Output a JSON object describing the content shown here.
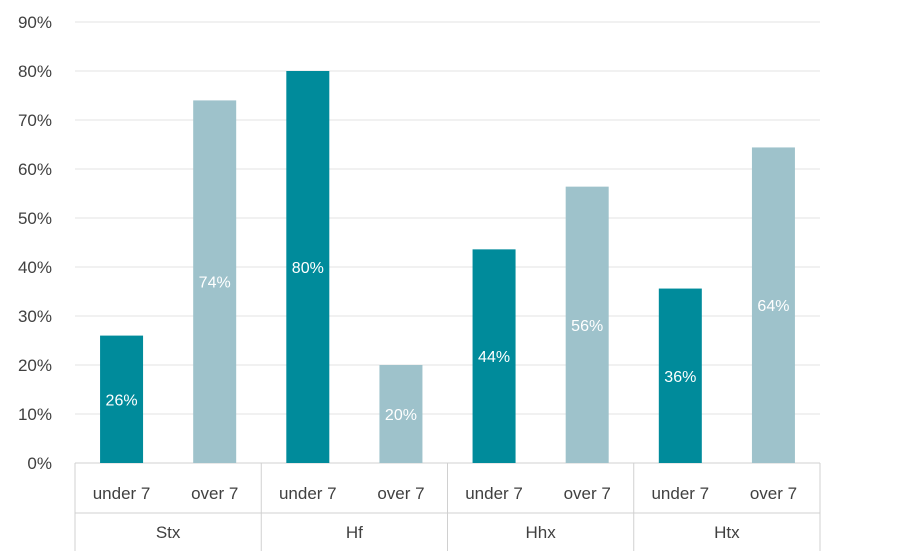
{
  "chart_data": {
    "type": "bar",
    "title": "",
    "xlabel": "",
    "ylabel": "",
    "ylim": [
      0,
      90
    ],
    "y_tick_values": [
      0,
      10,
      20,
      30,
      40,
      50,
      60,
      70,
      80,
      90
    ],
    "y_tick_labels": [
      "0%",
      "10%",
      "20%",
      "30%",
      "40%",
      "50%",
      "60%",
      "70%",
      "80%",
      "90%"
    ],
    "grid": "horizontal",
    "legend": "none",
    "groups": [
      {
        "label": "Stx",
        "bars": [
          {
            "label": "under 7",
            "value": 26,
            "data_label": "26%",
            "color": "#008b9b"
          },
          {
            "label": "over 7",
            "value": 74,
            "data_label": "74%",
            "color": "#9ec2cb"
          }
        ]
      },
      {
        "label": "Hf",
        "bars": [
          {
            "label": "under 7",
            "value": 80,
            "data_label": "80%",
            "color": "#008b9b"
          },
          {
            "label": "over 7",
            "value": 20,
            "data_label": "20%",
            "color": "#9ec2cb"
          }
        ]
      },
      {
        "label": "Hhx",
        "bars": [
          {
            "label": "under 7",
            "value": 43.6,
            "data_label": "44%",
            "color": "#008b9b"
          },
          {
            "label": "over 7",
            "value": 56.4,
            "data_label": "56%",
            "color": "#9ec2cb"
          }
        ]
      },
      {
        "label": "Htx",
        "bars": [
          {
            "label": "under 7",
            "value": 35.6,
            "data_label": "36%",
            "color": "#008b9b"
          },
          {
            "label": "over 7",
            "value": 64.4,
            "data_label": "64%",
            "color": "#9ec2cb"
          }
        ]
      }
    ]
  }
}
